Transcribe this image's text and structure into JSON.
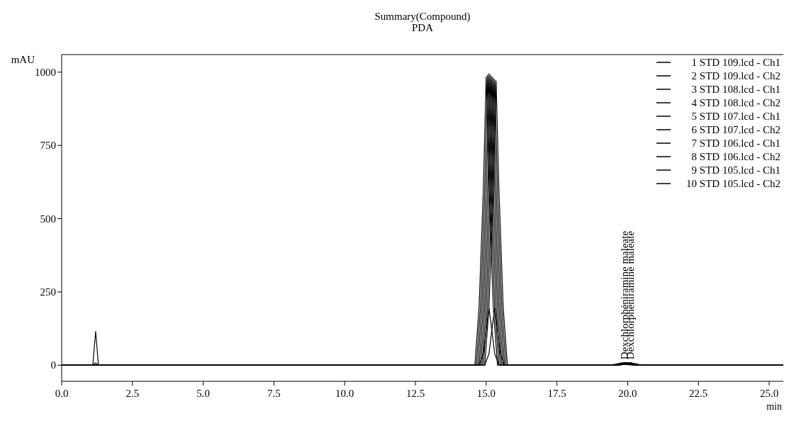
{
  "chart_data": {
    "type": "line",
    "title": "Summary(Compound)",
    "subtitle": "PDA",
    "xlabel": "min",
    "ylabel": "mAU",
    "xlim": [
      0,
      25.5
    ],
    "xticks": [
      {
        "value": 0,
        "label": "0.0"
      },
      {
        "value": 2.5,
        "label": "2.5"
      },
      {
        "value": 5,
        "label": "5.0"
      },
      {
        "value": 7.5,
        "label": "7.5"
      },
      {
        "value": 10,
        "label": "10.0"
      },
      {
        "value": 12.5,
        "label": "12.5"
      },
      {
        "value": 15,
        "label": "15.0"
      },
      {
        "value": 17.5,
        "label": "17.5"
      },
      {
        "value": 20,
        "label": "20.0"
      },
      {
        "value": 22.5,
        "label": "22.5"
      },
      {
        "value": 25,
        "label": "25.0"
      }
    ],
    "ylim": [
      -55,
      1060
    ],
    "yticks": [
      0,
      250,
      500,
      750,
      1000
    ],
    "grid": false,
    "legend": "top right",
    "marker": "none",
    "line_style": "solid",
    "annotations": [
      {
        "text": "Dexchlorphéniramine maleate",
        "x": 19.9,
        "y": 10
      },
      {
        "text": "Dexchlorphéniramine maleate",
        "x": 20.1,
        "y": 10
      }
    ],
    "series": [
      {
        "name": "1 STD 109.lcd - Ch1",
        "color": "#000000",
        "x": [
          0,
          1.1,
          1.2,
          1.3,
          14.6,
          14.75,
          14.9,
          15.0,
          15.1,
          15.25,
          15.4,
          19.4,
          19.8,
          20.2,
          25.5
        ],
        "values": [
          0,
          0,
          115,
          0,
          0,
          200,
          600,
          985,
          600,
          200,
          0,
          0,
          8,
          0,
          0
        ]
      },
      {
        "name": "2 STD 109.lcd - Ch2",
        "color": "#000000",
        "x": [
          0,
          1.1,
          1.2,
          1.3,
          14.75,
          14.9,
          15.0,
          15.1,
          15.2,
          15.3,
          15.45,
          19.4,
          19.8,
          20.2,
          25.5
        ],
        "values": [
          0,
          0,
          8,
          0,
          0,
          40,
          120,
          195,
          120,
          40,
          0,
          0,
          3,
          0,
          0
        ]
      },
      {
        "name": "3 STD 108.lcd - Ch1",
        "color": "#000000",
        "x": [
          0,
          14.65,
          14.8,
          14.95,
          15.05,
          15.15,
          15.3,
          15.45,
          19.5,
          19.9,
          20.3,
          25.5
        ],
        "values": [
          0,
          0,
          200,
          600,
          990,
          600,
          200,
          0,
          0,
          8,
          0,
          0
        ]
      },
      {
        "name": "4 STD 108.lcd - Ch2",
        "color": "#000000",
        "x": [
          0,
          14.7,
          14.85,
          15.0,
          15.1,
          15.2,
          15.35,
          15.5,
          19.5,
          19.9,
          20.3,
          25.5
        ],
        "values": [
          0,
          0,
          200,
          600,
          995,
          600,
          200,
          0,
          0,
          8,
          0,
          0
        ]
      },
      {
        "name": "5 STD 107.lcd - Ch1",
        "color": "#000000",
        "x": [
          0,
          14.75,
          14.9,
          15.05,
          15.15,
          15.25,
          15.4,
          15.55,
          19.5,
          19.9,
          20.3,
          25.5
        ],
        "values": [
          0,
          0,
          200,
          600,
          990,
          600,
          200,
          0,
          0,
          8,
          0,
          0
        ]
      },
      {
        "name": "6 STD 107.lcd - Ch2",
        "color": "#000000",
        "x": [
          0,
          14.95,
          15.1,
          15.2,
          15.3,
          15.4,
          15.5,
          15.65,
          19.6,
          20.0,
          20.4,
          25.5
        ],
        "values": [
          0,
          0,
          40,
          120,
          195,
          120,
          40,
          0,
          0,
          3,
          0,
          0
        ]
      },
      {
        "name": "7 STD 106.lcd - Ch1",
        "color": "#000000",
        "x": [
          0,
          14.8,
          14.95,
          15.1,
          15.2,
          15.3,
          15.45,
          15.6,
          19.6,
          20.0,
          20.4,
          25.5
        ],
        "values": [
          0,
          0,
          200,
          600,
          985,
          600,
          200,
          0,
          0,
          8,
          0,
          0
        ]
      },
      {
        "name": "8 STD 106.lcd - Ch2",
        "color": "#000000",
        "x": [
          0,
          14.85,
          15.0,
          15.15,
          15.25,
          15.35,
          15.5,
          15.65,
          19.6,
          20.0,
          20.4,
          25.5
        ],
        "values": [
          0,
          0,
          200,
          600,
          980,
          600,
          200,
          0,
          0,
          8,
          0,
          0
        ]
      },
      {
        "name": "9 STD 105.lcd - Ch1",
        "color": "#000000",
        "x": [
          0,
          14.9,
          15.05,
          15.2,
          15.3,
          15.4,
          15.55,
          15.7,
          19.7,
          20.1,
          20.5,
          25.5
        ],
        "values": [
          0,
          0,
          200,
          600,
          975,
          600,
          200,
          0,
          0,
          8,
          0,
          0
        ]
      },
      {
        "name": "10 STD 105.lcd - Ch2",
        "color": "#000000",
        "x": [
          0,
          14.95,
          15.1,
          15.25,
          15.35,
          15.45,
          15.6,
          15.75,
          19.7,
          20.1,
          20.5,
          25.5
        ],
        "values": [
          0,
          0,
          200,
          600,
          970,
          600,
          200,
          0,
          0,
          8,
          0,
          0
        ]
      }
    ]
  }
}
